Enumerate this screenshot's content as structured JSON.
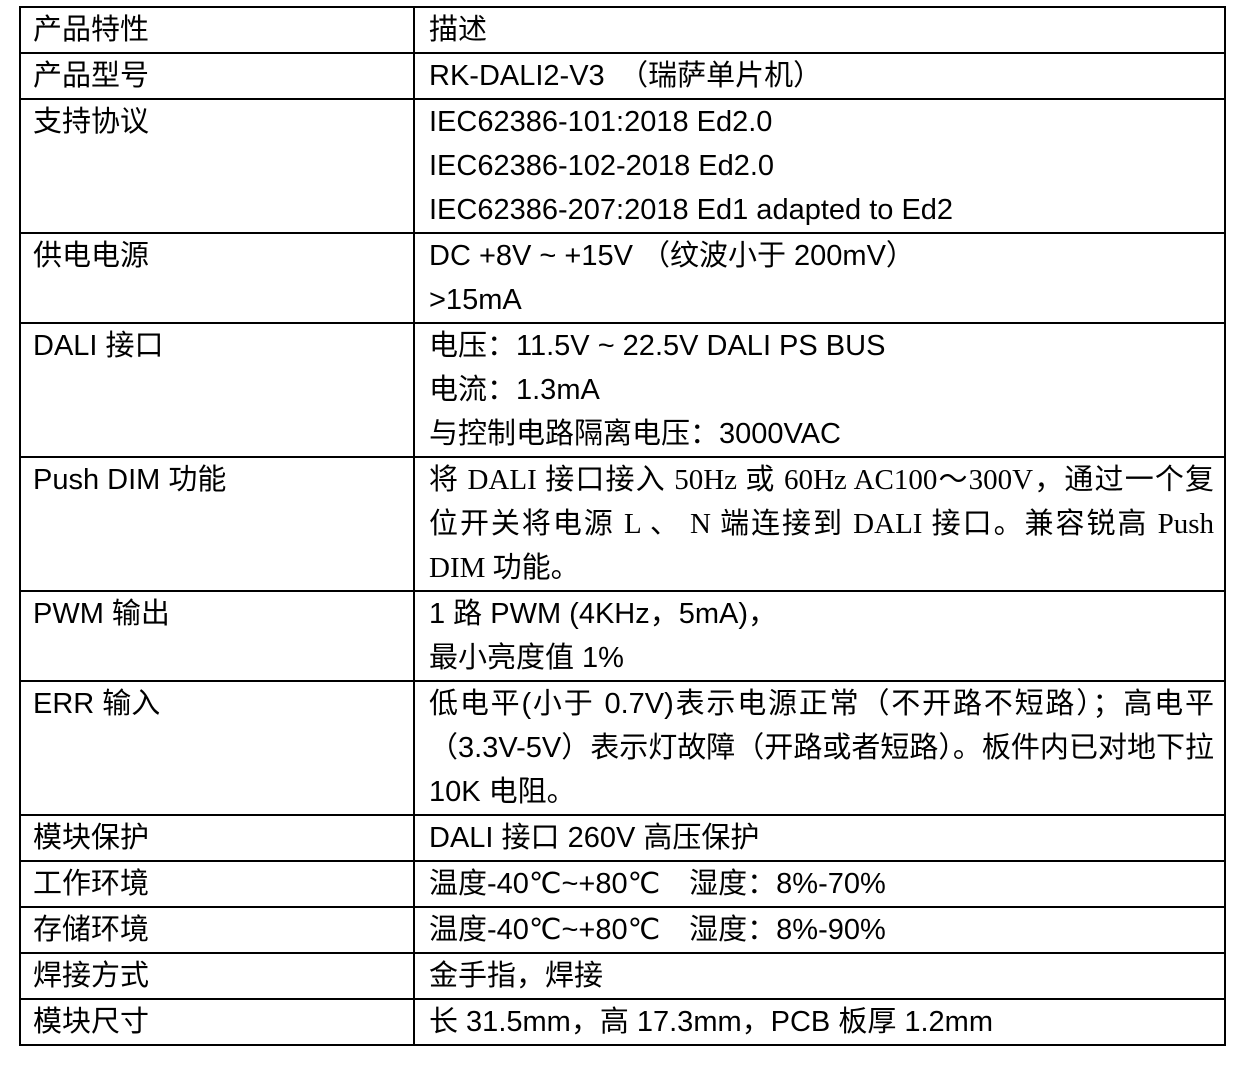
{
  "table": {
    "header": {
      "feature": "产品特性",
      "description": "描述"
    },
    "rows": [
      {
        "feature": "产品型号",
        "description": "RK-DALI2-V3　（瑞萨单片机）"
      },
      {
        "feature": "支持协议",
        "description": "IEC62386-101:2018 Ed2.0\nIEC62386-102-2018 Ed2.0\nIEC62386-207:2018 Ed1 adapted to Ed2"
      },
      {
        "feature": "供电电源",
        "description": "DC +8V ~ +15V （纹波小于 200mV）\n>15mA"
      },
      {
        "feature": "DALI 接口",
        "description": "电压：11.5V ~ 22.5V DALI PS BUS\n电流：1.3mA\n与控制电路隔离电压：3000VAC"
      },
      {
        "feature": "Push DIM 功能",
        "description": "将 DALI 接口接入 50Hz 或 60Hz AC100～300V，通过一个复位开关将电源 L 、 N 端连接到 DALI 接口。兼容锐高 Push DIM 功能。"
      },
      {
        "feature": "PWM 输出",
        "description": "1 路 PWM (4KHz，5mA)，\n最小亮度值 1%"
      },
      {
        "feature": "ERR 输入",
        "description": "低电平(小于 0.7V)表示电源正常（不开路不短路）；高电平（3.3V-5V）表示灯故障（开路或者短路）。板件内已对地下拉 10K 电阻。"
      },
      {
        "feature": "模块保护",
        "description": "DALI 接口 260V 高压保护"
      },
      {
        "feature": "工作环境",
        "description": "温度-40℃~+80℃　湿度：8%-70%"
      },
      {
        "feature": "存储环境",
        "description": "温度-40℃~+80℃　湿度：8%-90%"
      },
      {
        "feature": "焊接方式",
        "description": "金手指，焊接"
      },
      {
        "feature": "模块尺寸",
        "description": "长 31.5mm，高 17.3mm，PCB 板厚 1.2mm"
      }
    ]
  }
}
